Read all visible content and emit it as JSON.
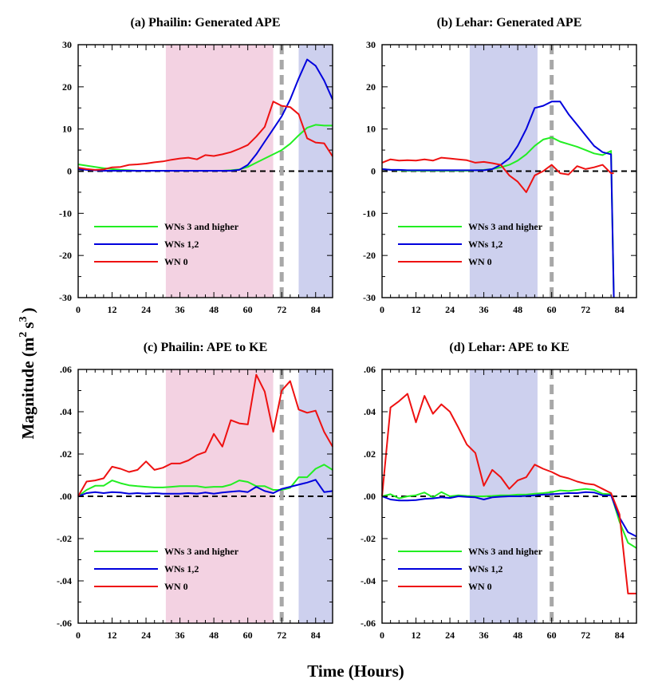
{
  "figure": {
    "xlabel": "Time (Hours)",
    "ylabel": {
      "main": "Magnitude (m",
      "sup1": "2",
      "mid": "s",
      "sup2": "3",
      "end": ")"
    }
  },
  "legend": {
    "wn3": "WNs 3 and higher",
    "wn12": "WNs 1,2",
    "wn0": "WN 0"
  },
  "colors": {
    "wn3": "#22ee22",
    "wn12": "#0000dd",
    "wn0": "#ee1111",
    "pink": "#f3d2e2",
    "blue": "#cdd0ee",
    "zero": "#000000",
    "vline": "#a8a8a8"
  },
  "chart_data": [
    {
      "type": "line",
      "title": "(a) Phailin: Generated APE",
      "xlim": [
        0,
        90
      ],
      "ylim": [
        -30,
        30
      ],
      "xticks": [
        0,
        12,
        24,
        36,
        48,
        60,
        72,
        84
      ],
      "yticks": [
        -30,
        -20,
        -10,
        0,
        10,
        20,
        30
      ],
      "ytick_labels": [
        "-30",
        "-20",
        "-10",
        "0",
        "10",
        "20",
        "30"
      ],
      "shading": [
        {
          "color": "pink",
          "x": [
            31,
            69
          ]
        },
        {
          "color": "blue",
          "x": [
            78,
            90
          ]
        }
      ],
      "vline": 72,
      "series": [
        {
          "name": "WNs 3 and higher",
          "key": "wn3",
          "x": [
            0,
            3,
            6,
            9,
            12,
            15,
            18,
            21,
            24,
            27,
            30,
            33,
            36,
            39,
            42,
            45,
            48,
            51,
            54,
            57,
            60,
            63,
            66,
            69,
            72,
            75,
            78,
            81,
            84,
            87,
            90
          ],
          "y": [
            1.6,
            1.3,
            1,
            0.7,
            0.5,
            0.3,
            0.2,
            0.1,
            0.1,
            0.1,
            0.1,
            0.1,
            0.1,
            0.1,
            0.1,
            0.1,
            0.1,
            0.1,
            0.2,
            0.4,
            1,
            2,
            3,
            4,
            5,
            6.5,
            8.5,
            10.3,
            11,
            10.8,
            10.8
          ]
        },
        {
          "name": "WNs 1,2",
          "key": "wn12",
          "x": [
            0,
            3,
            6,
            9,
            12,
            15,
            18,
            21,
            24,
            27,
            30,
            33,
            36,
            39,
            42,
            45,
            48,
            51,
            54,
            57,
            60,
            63,
            66,
            69,
            72,
            75,
            78,
            81,
            84,
            87,
            90
          ],
          "y": [
            0.5,
            0.3,
            0.2,
            0.1,
            0.1,
            0.1,
            0.1,
            0.1,
            0.1,
            0.1,
            0.1,
            0.1,
            0.1,
            0.1,
            0.1,
            0.1,
            0.1,
            0.1,
            0.1,
            0.3,
            1.5,
            4,
            7,
            10,
            13,
            17,
            22,
            26.5,
            25,
            21.5,
            17
          ]
        },
        {
          "name": "WN 0",
          "key": "wn0",
          "x": [
            0,
            3,
            6,
            9,
            12,
            15,
            18,
            21,
            24,
            27,
            30,
            33,
            36,
            39,
            42,
            45,
            48,
            51,
            54,
            57,
            60,
            63,
            66,
            69,
            72,
            75,
            78,
            81,
            84,
            87,
            90
          ],
          "y": [
            0.8,
            0.5,
            0.3,
            0.4,
            0.9,
            1,
            1.5,
            1.6,
            1.8,
            2.1,
            2.3,
            2.7,
            3,
            3.2,
            2.8,
            3.8,
            3.6,
            4,
            4.5,
            5.3,
            6.2,
            8.2,
            10.5,
            16.5,
            15.5,
            15.2,
            13.5,
            7.8,
            6.8,
            6.6,
            3.5
          ]
        }
      ]
    },
    {
      "type": "line",
      "title": "(b) Lehar: Generated APE",
      "xlim": [
        0,
        90
      ],
      "ylim": [
        -30,
        30
      ],
      "xticks": [
        0,
        12,
        24,
        36,
        48,
        60,
        72,
        84
      ],
      "yticks": [
        -30,
        -20,
        -10,
        0,
        10,
        20,
        30
      ],
      "ytick_labels": [
        "-30",
        "-20",
        "-10",
        "0",
        "10",
        "20",
        "30"
      ],
      "shading": [
        {
          "color": "blue",
          "x": [
            31,
            55
          ]
        }
      ],
      "vline": 60,
      "series": [
        {
          "name": "WNs 3 and higher",
          "key": "wn3",
          "x": [
            0,
            3,
            6,
            9,
            12,
            15,
            18,
            21,
            24,
            27,
            30,
            33,
            36,
            39,
            42,
            45,
            48,
            51,
            54,
            57,
            60,
            63,
            66,
            69,
            72,
            75,
            78,
            81,
            82
          ],
          "y": [
            0.5,
            0.3,
            0.2,
            0.1,
            0.1,
            0.1,
            0.1,
            0.1,
            0.1,
            0.1,
            0.1,
            0.2,
            0.3,
            0.5,
            0.9,
            1.5,
            2.5,
            4,
            6,
            7.5,
            8,
            7,
            6.4,
            5.8,
            5,
            4.2,
            3.8,
            4.8,
            -32
          ]
        },
        {
          "name": "WNs 1,2",
          "key": "wn12",
          "x": [
            0,
            3,
            6,
            9,
            12,
            15,
            18,
            21,
            24,
            27,
            30,
            33,
            36,
            39,
            42,
            45,
            48,
            51,
            54,
            57,
            60,
            63,
            66,
            69,
            72,
            75,
            78,
            81,
            82
          ],
          "y": [
            0.5,
            0.3,
            0.3,
            0.2,
            0.2,
            0.2,
            0.2,
            0.2,
            0.2,
            0.2,
            0.2,
            0.2,
            0.2,
            0.5,
            1.5,
            3,
            6,
            10,
            15,
            15.5,
            16.5,
            16.5,
            13.5,
            11,
            8.5,
            6,
            4.5,
            4,
            -32
          ]
        },
        {
          "name": "WN 0",
          "key": "wn0",
          "x": [
            0,
            3,
            6,
            9,
            12,
            15,
            18,
            21,
            24,
            27,
            30,
            33,
            36,
            39,
            42,
            45,
            48,
            51,
            54,
            57,
            60,
            63,
            66,
            69,
            72,
            75,
            78,
            81,
            82
          ],
          "y": [
            2,
            2.8,
            2.5,
            2.6,
            2.5,
            2.8,
            2.5,
            3.2,
            3,
            2.8,
            2.6,
            2,
            2.2,
            1.9,
            1.5,
            -1,
            -2.5,
            -5,
            -1,
            0,
            1.5,
            -0.5,
            -0.8,
            1.2,
            0.5,
            0.9,
            1.5,
            -0.5,
            -0.5
          ]
        }
      ]
    },
    {
      "type": "line",
      "title": "(c) Phailin: APE to KE",
      "xlim": [
        0,
        90
      ],
      "ylim": [
        -0.06,
        0.06
      ],
      "xticks": [
        0,
        12,
        24,
        36,
        48,
        60,
        72,
        84
      ],
      "yticks": [
        -0.06,
        -0.04,
        -0.02,
        0,
        0.02,
        0.04,
        0.06
      ],
      "ytick_labels": [
        "-.06",
        "-.04",
        "-.02",
        ".00",
        ".02",
        ".04",
        ".06"
      ],
      "shading": [
        {
          "color": "pink",
          "x": [
            31,
            69
          ]
        },
        {
          "color": "blue",
          "x": [
            78,
            90
          ]
        }
      ],
      "vline": 72,
      "series": [
        {
          "name": "WNs 3 and higher",
          "key": "wn3",
          "x": [
            0,
            3,
            6,
            9,
            12,
            15,
            18,
            21,
            24,
            27,
            30,
            33,
            36,
            39,
            42,
            45,
            48,
            51,
            54,
            57,
            60,
            63,
            66,
            69,
            72,
            75,
            78,
            81,
            84,
            87,
            90
          ],
          "y": [
            0,
            0.003,
            0.005,
            0.005,
            0.0075,
            0.0062,
            0.0052,
            0.0048,
            0.0045,
            0.0042,
            0.0042,
            0.0045,
            0.0048,
            0.0048,
            0.0048,
            0.0042,
            0.0045,
            0.0045,
            0.0055,
            0.0075,
            0.0068,
            0.0048,
            0.0048,
            0.003,
            0.003,
            0.004,
            0.009,
            0.009,
            0.013,
            0.015,
            0.0125
          ]
        },
        {
          "name": "WNs 1,2",
          "key": "wn12",
          "x": [
            0,
            3,
            6,
            9,
            12,
            15,
            18,
            21,
            24,
            27,
            30,
            33,
            36,
            39,
            42,
            45,
            48,
            51,
            54,
            57,
            60,
            63,
            66,
            69,
            72,
            75,
            78,
            81,
            84,
            87,
            90
          ],
          "y": [
            0,
            0.0015,
            0.002,
            0.0015,
            0.002,
            0.0018,
            0.0012,
            0.0015,
            0.0012,
            0.0015,
            0.0012,
            0.0012,
            0.0012,
            0.0015,
            0.0012,
            0.0018,
            0.0012,
            0.0018,
            0.0022,
            0.0025,
            0.002,
            0.0045,
            0.0025,
            0.0015,
            0.0035,
            0.0045,
            0.0055,
            0.0065,
            0.0078,
            0.002,
            0.0025
          ]
        },
        {
          "name": "WN 0",
          "key": "wn0",
          "x": [
            0,
            3,
            6,
            9,
            12,
            15,
            18,
            21,
            24,
            27,
            30,
            33,
            36,
            39,
            42,
            45,
            48,
            51,
            54,
            57,
            60,
            63,
            66,
            69,
            72,
            75,
            78,
            81,
            84,
            87,
            90
          ],
          "y": [
            0,
            0.007,
            0.0075,
            0.0085,
            0.014,
            0.013,
            0.0115,
            0.0125,
            0.0165,
            0.0125,
            0.0135,
            0.0155,
            0.0155,
            0.017,
            0.0195,
            0.021,
            0.0295,
            0.0235,
            0.036,
            0.0345,
            0.034,
            0.0575,
            0.0495,
            0.0305,
            0.05,
            0.0545,
            0.041,
            0.0395,
            0.0405,
            0.0305,
            0.0235
          ]
        }
      ]
    },
    {
      "type": "line",
      "title": "(d) Lehar: APE to KE",
      "xlim": [
        0,
        90
      ],
      "ylim": [
        -0.06,
        0.06
      ],
      "xticks": [
        0,
        12,
        24,
        36,
        48,
        60,
        72,
        84
      ],
      "yticks": [
        -0.06,
        -0.04,
        -0.02,
        0,
        0.02,
        0.04,
        0.06
      ],
      "ytick_labels": [
        "-.06",
        "-.04",
        "-.02",
        ".00",
        ".02",
        ".04",
        ".06"
      ],
      "shading": [
        {
          "color": "blue",
          "x": [
            31,
            55
          ]
        }
      ],
      "vline": 60,
      "series": [
        {
          "name": "WNs 3 and higher",
          "key": "wn3",
          "x": [
            0,
            3,
            6,
            9,
            12,
            15,
            18,
            21,
            24,
            27,
            30,
            33,
            36,
            39,
            42,
            45,
            48,
            51,
            54,
            57,
            60,
            63,
            66,
            69,
            72,
            75,
            78,
            81,
            84,
            87,
            90
          ],
          "y": [
            0,
            0.001,
            -0.001,
            0,
            0.0005,
            0.0018,
            -0.0005,
            0.002,
            0,
            0.0005,
            0.0002,
            0,
            0,
            0.0002,
            0.0005,
            0.0005,
            0.0008,
            0.0008,
            0.0012,
            0.0015,
            0.002,
            0.0028,
            0.0025,
            0.003,
            0.0035,
            0.003,
            0.0012,
            0.001,
            -0.012,
            -0.022,
            -0.0245
          ]
        },
        {
          "name": "WNs 1,2",
          "key": "wn12",
          "x": [
            0,
            3,
            6,
            9,
            12,
            15,
            18,
            21,
            24,
            27,
            30,
            33,
            36,
            39,
            42,
            45,
            48,
            51,
            54,
            57,
            60,
            63,
            66,
            69,
            72,
            75,
            78,
            81,
            84,
            87,
            90
          ],
          "y": [
            0,
            -0.0015,
            -0.002,
            -0.002,
            -0.0018,
            -0.0012,
            -0.001,
            -0.0005,
            -0.0008,
            0,
            -0.0003,
            -0.0005,
            -0.0015,
            -0.0005,
            -0.0002,
            0,
            0,
            0.0002,
            0.0005,
            0.0008,
            0.001,
            0.0012,
            0.0015,
            0.0015,
            0.002,
            0.0018,
            0.0005,
            0.0005,
            -0.01,
            -0.017,
            -0.019
          ]
        },
        {
          "name": "WN 0",
          "key": "wn0",
          "x": [
            0,
            3,
            6,
            9,
            12,
            15,
            18,
            21,
            24,
            27,
            30,
            33,
            36,
            39,
            42,
            45,
            48,
            51,
            54,
            57,
            60,
            63,
            66,
            69,
            72,
            75,
            78,
            81,
            84,
            87,
            90
          ],
          "y": [
            0,
            0.042,
            0.045,
            0.0485,
            0.035,
            0.0475,
            0.039,
            0.0435,
            0.04,
            0.0325,
            0.0245,
            0.0205,
            0.005,
            0.0125,
            0.009,
            0.0035,
            0.0075,
            0.009,
            0.015,
            0.013,
            0.0115,
            0.0095,
            0.0085,
            0.007,
            0.006,
            0.0055,
            0.0035,
            0.0015,
            -0.0085,
            -0.046,
            -0.046
          ]
        }
      ]
    }
  ]
}
